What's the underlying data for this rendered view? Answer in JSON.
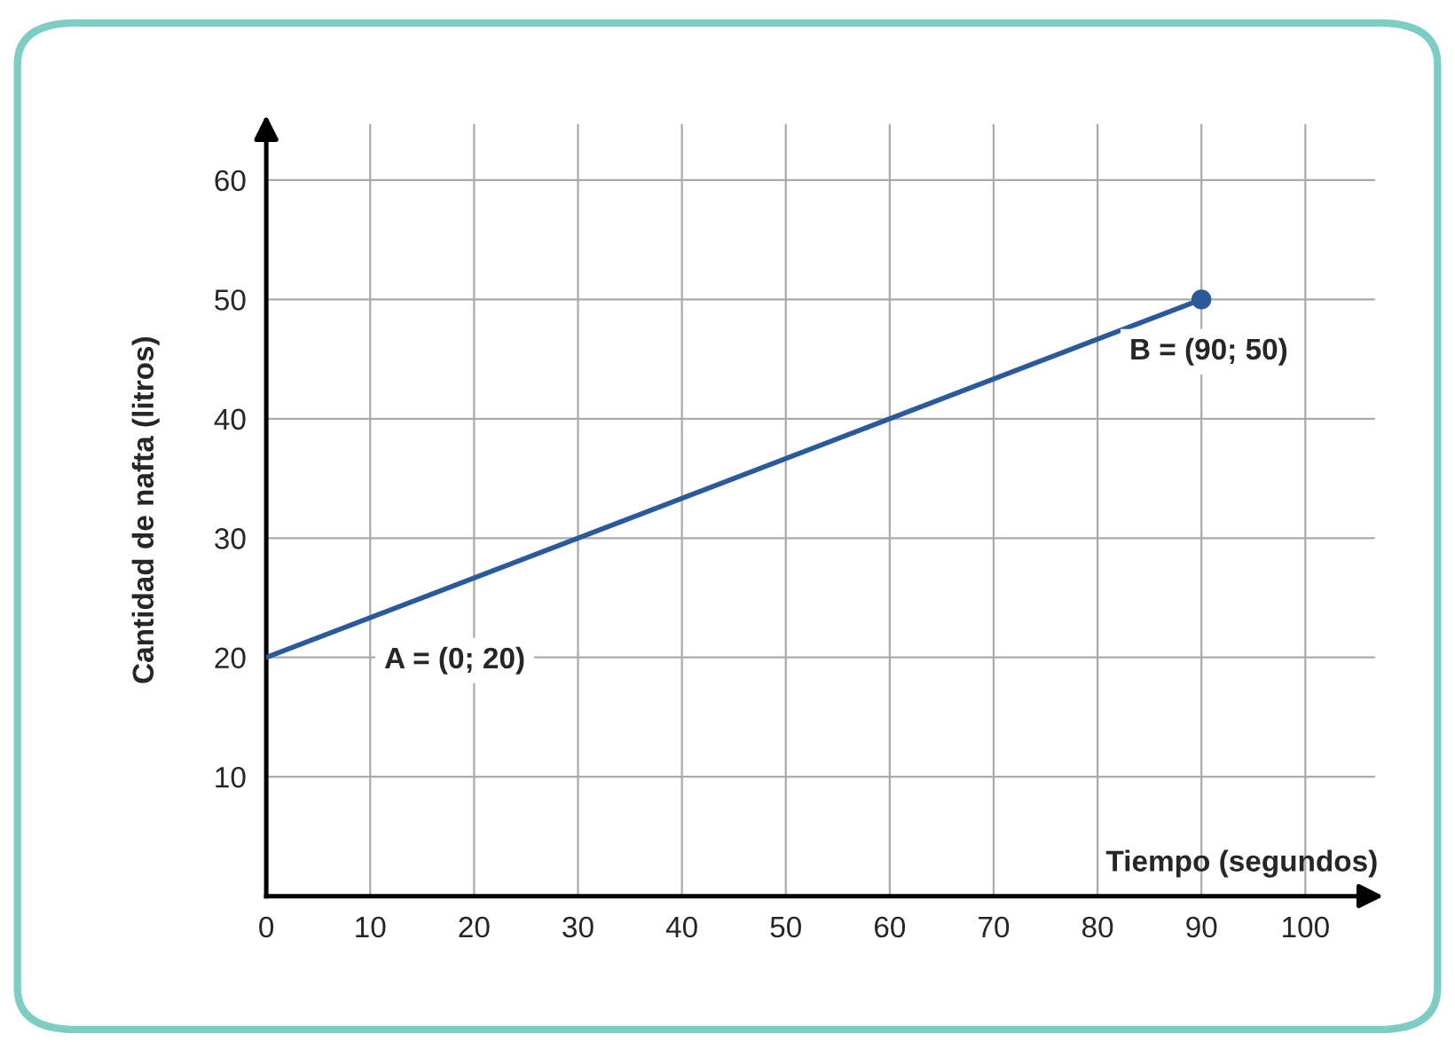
{
  "chart_data": {
    "type": "line",
    "xlabel": "Tiempo (segundos)",
    "ylabel": "Cantidad de nafta (litros)",
    "xlim": [
      0,
      106.7
    ],
    "ylim": [
      0,
      64.7
    ],
    "xticks": [
      0,
      10,
      20,
      30,
      40,
      50,
      60,
      70,
      80,
      90,
      100
    ],
    "yticks": [
      10,
      20,
      30,
      40,
      50,
      60
    ],
    "grid": true,
    "line_style": "solid",
    "x": [
      0,
      90
    ],
    "series": [
      {
        "color": "#2a5a9c",
        "values": [
          20,
          50
        ],
        "marker": "none"
      },
      {
        "type": "scatter",
        "color": "#2a5a9c",
        "x": [
          90
        ],
        "values": [
          50
        ],
        "marker": "circle"
      }
    ],
    "annotations": [
      "A = (0; 20)",
      "B = (90; 50)"
    ]
  }
}
